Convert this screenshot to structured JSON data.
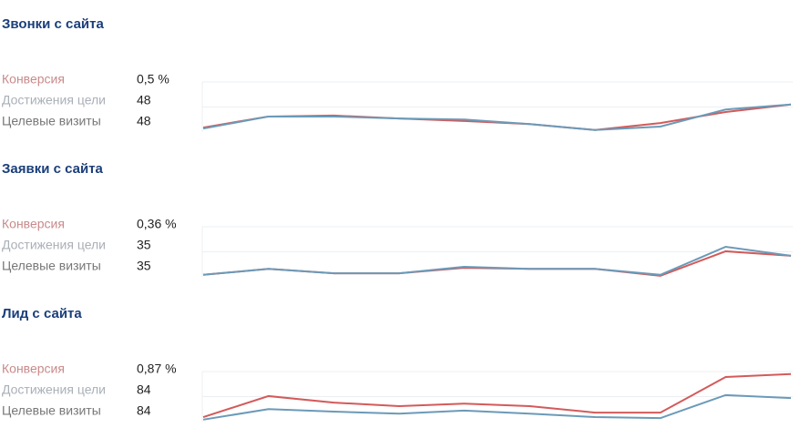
{
  "widgets": [
    {
      "title": "Звонки с сайта",
      "metrics": [
        {
          "label": "Конверсия",
          "value": "0,5 %"
        },
        {
          "label": "Достижения цели",
          "value": "48"
        },
        {
          "label": "Целевые визиты",
          "value": "48"
        }
      ],
      "chart": {
        "type": "line",
        "ylim": [
          0,
          100
        ],
        "series": [
          {
            "color": "#d45a5a",
            "values": [
              9,
              31,
              33,
              27,
              22,
              16,
              4,
              18,
              40,
              55
            ]
          },
          {
            "color": "#6b9ab8",
            "values": [
              7,
              31,
              31,
              27,
              25,
              16,
              4,
              11,
              45,
              55
            ]
          }
        ]
      }
    },
    {
      "title": "Заявки с сайта",
      "metrics": [
        {
          "label": "Конверсия",
          "value": "0,36 %"
        },
        {
          "label": "Достижения цели",
          "value": "35"
        },
        {
          "label": "Целевые визиты",
          "value": "35"
        }
      ],
      "chart": {
        "type": "line",
        "ylim": [
          0,
          100
        ],
        "series": [
          {
            "color": "#d45a5a",
            "values": [
              4,
              16,
              7,
              7,
              18,
              16,
              16,
              2,
              51,
              42
            ]
          },
          {
            "color": "#6b9ab8",
            "values": [
              4,
              16,
              7,
              7,
              20,
              16,
              16,
              4,
              60,
              42
            ]
          }
        ]
      }
    },
    {
      "title": "Лид с сайта",
      "metrics": [
        {
          "label": "Конверсия",
          "value": "0,87 %"
        },
        {
          "label": "Достижения цели",
          "value": "84"
        },
        {
          "label": "Целевые визиты",
          "value": "84"
        }
      ],
      "chart": {
        "type": "line",
        "ylim": [
          0,
          100
        ],
        "series": [
          {
            "color": "#d45a5a",
            "values": [
              9,
              51,
              38,
              31,
              36,
              31,
              18,
              18,
              89,
              95
            ]
          },
          {
            "color": "#6b9ab8",
            "values": [
              4,
              25,
              20,
              16,
              22,
              16,
              9,
              7,
              53,
              47
            ]
          }
        ]
      }
    }
  ]
}
